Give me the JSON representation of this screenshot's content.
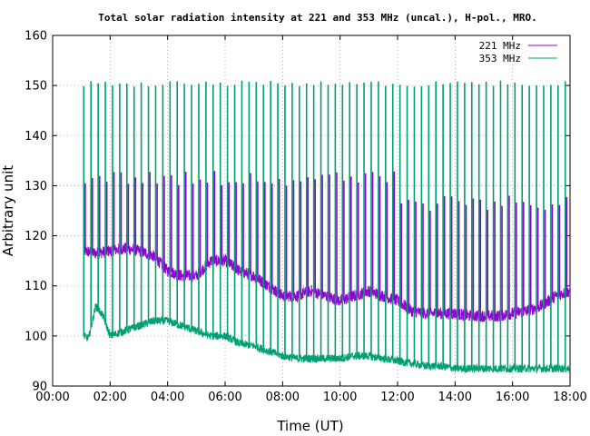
{
  "chart_data": {
    "type": "line",
    "title": "Total solar radiation intensity at 221 and 353 MHz (uncal.), H-pol., MRO.",
    "xlabel": "Time (UT)",
    "ylabel": "Arbitrary unit",
    "xlim": [
      "00:00",
      "18:00"
    ],
    "ylim": [
      90,
      160
    ],
    "x_ticks": [
      "00:00",
      "02:00",
      "04:00",
      "06:00",
      "08:00",
      "10:00",
      "12:00",
      "14:00",
      "16:00",
      "18:00"
    ],
    "y_ticks": [
      "90",
      "100",
      "110",
      "120",
      "130",
      "140",
      "150",
      "160"
    ],
    "grid": true,
    "legend_position": "top-right",
    "series": [
      {
        "name": "221 MHz",
        "color": "#9400d3",
        "baseline": {
          "x": [
            "01:05",
            "01:30",
            "02:00",
            "02:30",
            "03:00",
            "03:30",
            "04:00",
            "04:30",
            "05:00",
            "05:30",
            "06:00",
            "06:30",
            "07:00",
            "07:30",
            "08:00",
            "08:30",
            "09:00",
            "09:30",
            "10:00",
            "10:30",
            "11:00",
            "11:30",
            "12:00",
            "12:30",
            "13:00",
            "13:30",
            "14:00",
            "14:30",
            "15:00",
            "15:30",
            "16:00",
            "16:30",
            "17:00",
            "17:30",
            "18:00"
          ],
          "y": [
            117,
            116.5,
            117,
            117.5,
            117,
            116,
            113,
            112,
            112,
            115,
            115,
            113,
            112,
            110,
            108,
            108,
            109,
            108,
            107,
            108,
            109,
            108,
            107,
            105,
            104.5,
            104.5,
            104.5,
            104,
            104,
            104,
            104.5,
            105,
            106,
            108,
            109
          ]
        },
        "spikes": {
          "max_before_12h": 133,
          "max_after_12h": 128,
          "spacing_minutes": 15
        }
      },
      {
        "name": "353 MHz",
        "color": "#009e73",
        "baseline": {
          "x": [
            "01:05",
            "01:15",
            "01:30",
            "01:45",
            "02:00",
            "02:30",
            "03:00",
            "03:30",
            "04:00",
            "04:30",
            "05:00",
            "05:30",
            "06:00",
            "06:30",
            "07:00",
            "07:30",
            "08:00",
            "08:30",
            "09:00",
            "09:30",
            "10:00",
            "10:30",
            "11:00",
            "11:30",
            "12:00",
            "12:30",
            "13:00",
            "13:30",
            "14:00",
            "14:30",
            "15:00",
            "15:30",
            "16:00",
            "16:30",
            "17:00",
            "17:30",
            "18:00"
          ],
          "y": [
            100,
            99.5,
            106,
            104,
            100,
            101,
            102,
            103,
            103,
            102,
            101,
            100,
            100,
            98.5,
            98,
            97,
            96,
            95.5,
            95.5,
            95.5,
            95.5,
            96,
            96,
            95.5,
            95,
            94.5,
            94,
            94,
            93.5,
            93.5,
            93.5,
            93.5,
            93.5,
            93.5,
            93.5,
            93.5,
            93.5
          ]
        },
        "spikes": {
          "max": 151,
          "spacing_minutes": 15
        }
      }
    ]
  }
}
